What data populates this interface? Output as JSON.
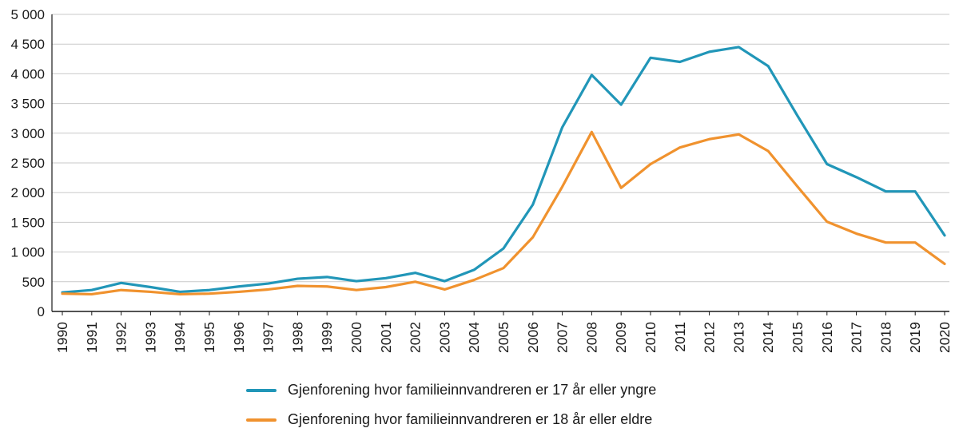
{
  "chart_data": {
    "type": "line",
    "x": [
      1990,
      1991,
      1992,
      1993,
      1994,
      1995,
      1996,
      1997,
      1998,
      1999,
      2000,
      2001,
      2002,
      2003,
      2004,
      2005,
      2006,
      2007,
      2008,
      2009,
      2010,
      2011,
      2012,
      2013,
      2014,
      2015,
      2016,
      2017,
      2018,
      2019,
      2020
    ],
    "series": [
      {
        "name": "Gjenforening hvor familieinnvandreren er 17 år eller yngre",
        "color": "#2196b8",
        "values": [
          320,
          360,
          480,
          410,
          330,
          360,
          420,
          470,
          550,
          580,
          510,
          560,
          650,
          510,
          700,
          1060,
          1800,
          3100,
          3980,
          3480,
          4270,
          4200,
          4370,
          4450,
          4130,
          3290,
          2480,
          2260,
          2020,
          2020,
          1280
        ]
      },
      {
        "name": "Gjenforening hvor familieinnvandreren er 18 år eller eldre",
        "color": "#f0922e",
        "values": [
          300,
          290,
          360,
          330,
          290,
          300,
          330,
          370,
          430,
          420,
          360,
          410,
          500,
          370,
          530,
          730,
          1250,
          2100,
          3020,
          2080,
          2480,
          2760,
          2900,
          2980,
          2700,
          2100,
          1510,
          1310,
          1160,
          1160,
          800
        ]
      }
    ],
    "title": "",
    "xlabel": "",
    "ylabel": "",
    "ylim": [
      0,
      5000
    ],
    "ytick_step": 500,
    "yticklabels": [
      "0",
      "500",
      "1 000",
      "1 500",
      "2 000",
      "2 500",
      "3 000",
      "3 500",
      "4 000",
      "4 500",
      "5 000"
    ],
    "grid": true,
    "legend_position": "bottom"
  },
  "colors": {
    "grid": "#c9c9c9",
    "axis": "#1a1a1a",
    "text": "#1a1a1a"
  }
}
